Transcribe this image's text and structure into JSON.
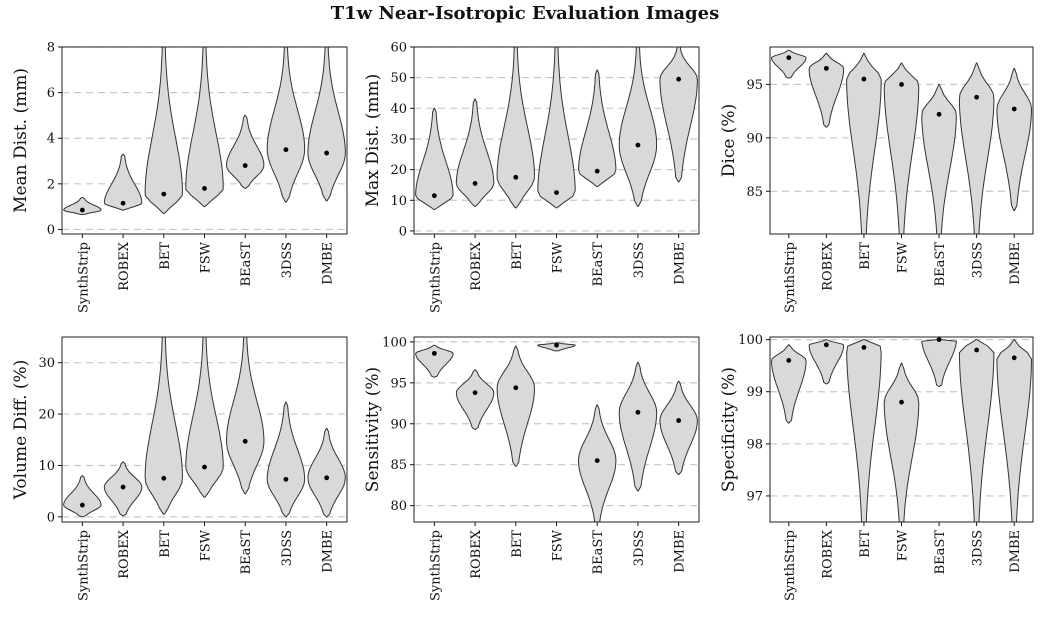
{
  "title": "T1w Near-Isotropic Evaluation Images",
  "colors": {
    "violin_fill": "#d9d9d9",
    "violin_stroke": "#333333",
    "grid": "#c8c8c8",
    "median_dot": "#000000"
  },
  "chart_data": [
    {
      "type": "violin",
      "ylabel": "Mean Dist. (mm)",
      "ylim": [
        -0.2,
        8
      ],
      "yticks": [
        0,
        2,
        4,
        6,
        8
      ],
      "grid": "horizontal dashed",
      "categories": [
        "SynthStrip",
        "ROBEX",
        "BET",
        "FSW",
        "BEaST",
        "3DSS",
        "DMBE"
      ],
      "series": [
        {
          "values": [
            0.85,
            1.15,
            1.55,
            1.8,
            2.8,
            3.5,
            3.35
          ],
          "min": [
            0.65,
            0.85,
            0.7,
            1.0,
            1.8,
            1.2,
            1.25
          ],
          "max": [
            1.4,
            3.3,
            8.0,
            8.0,
            5.0,
            8.0,
            8.0
          ]
        }
      ]
    },
    {
      "type": "violin",
      "ylabel": "Max Dist. (mm)",
      "ylim": [
        -1,
        60
      ],
      "yticks": [
        0,
        10,
        20,
        30,
        40,
        50,
        60
      ],
      "grid": "horizontal dashed",
      "categories": [
        "SynthStrip",
        "ROBEX",
        "BET",
        "FSW",
        "BEaST",
        "3DSS",
        "DMBE"
      ],
      "series": [
        {
          "values": [
            11.5,
            15.5,
            17.5,
            12.5,
            19.5,
            28,
            49.5
          ],
          "min": [
            7,
            8,
            7.5,
            7.5,
            14.5,
            8,
            16
          ],
          "max": [
            40,
            43,
            60,
            60,
            52.5,
            60,
            60
          ]
        }
      ]
    },
    {
      "type": "violin",
      "ylabel": "Dice (%)",
      "ylim": [
        81,
        98.5
      ],
      "yticks": [
        85,
        90,
        95
      ],
      "grid": "horizontal dashed",
      "categories": [
        "SynthStrip",
        "ROBEX",
        "BET",
        "FSW",
        "BEaST",
        "3DSS",
        "DMBE"
      ],
      "series": [
        {
          "values": [
            97.5,
            96.5,
            95.5,
            95,
            92.2,
            93.8,
            92.7
          ],
          "min": [
            95.6,
            91,
            81,
            81,
            81,
            81,
            83.2
          ],
          "max": [
            98.2,
            97.9,
            97.9,
            97,
            95,
            97,
            96.5
          ]
        }
      ]
    },
    {
      "type": "violin",
      "ylabel": "Volume Diff. (%)",
      "ylim": [
        -1,
        35
      ],
      "yticks": [
        0,
        10,
        20,
        30
      ],
      "grid": "horizontal dashed",
      "categories": [
        "SynthStrip",
        "ROBEX",
        "BET",
        "FSW",
        "BEaST",
        "3DSS",
        "DMBE"
      ],
      "series": [
        {
          "values": [
            2.3,
            5.8,
            7.5,
            9.7,
            14.7,
            7.3,
            7.6
          ],
          "min": [
            0,
            0.2,
            0.5,
            3.8,
            4.5,
            0,
            0
          ],
          "max": [
            8,
            10.7,
            35,
            35,
            35,
            22.3,
            17.2
          ]
        }
      ]
    },
    {
      "type": "violin",
      "ylabel": "Sensitivity (%)",
      "ylim": [
        78,
        100.6
      ],
      "yticks": [
        80,
        85,
        90,
        95,
        100
      ],
      "grid": "horizontal dashed",
      "categories": [
        "SynthStrip",
        "ROBEX",
        "BET",
        "FSW",
        "BEaST",
        "3DSS",
        "DMBE"
      ],
      "series": [
        {
          "values": [
            98.6,
            93.8,
            94.4,
            99.6,
            85.5,
            91.4,
            90.4
          ],
          "min": [
            95.7,
            89.3,
            84.8,
            98.9,
            78,
            81.8,
            83.8
          ],
          "max": [
            99.6,
            96.6,
            99.5,
            99.9,
            92.3,
            97.5,
            95.2
          ]
        }
      ]
    },
    {
      "type": "violin",
      "ylabel": "Specificity (%)",
      "ylim": [
        96.5,
        100.05
      ],
      "yticks": [
        97,
        98,
        99,
        100
      ],
      "grid": "horizontal dashed",
      "categories": [
        "SynthStrip",
        "ROBEX",
        "BET",
        "FSW",
        "BEaST",
        "3DSS",
        "DMBE"
      ],
      "series": [
        {
          "values": [
            99.6,
            99.9,
            99.85,
            98.8,
            100,
            99.8,
            99.65
          ],
          "min": [
            98.4,
            99.15,
            96.5,
            96.5,
            99.1,
            96.5,
            96.5
          ],
          "max": [
            99.9,
            100,
            100,
            99.55,
            100,
            100,
            100
          ]
        }
      ]
    }
  ]
}
